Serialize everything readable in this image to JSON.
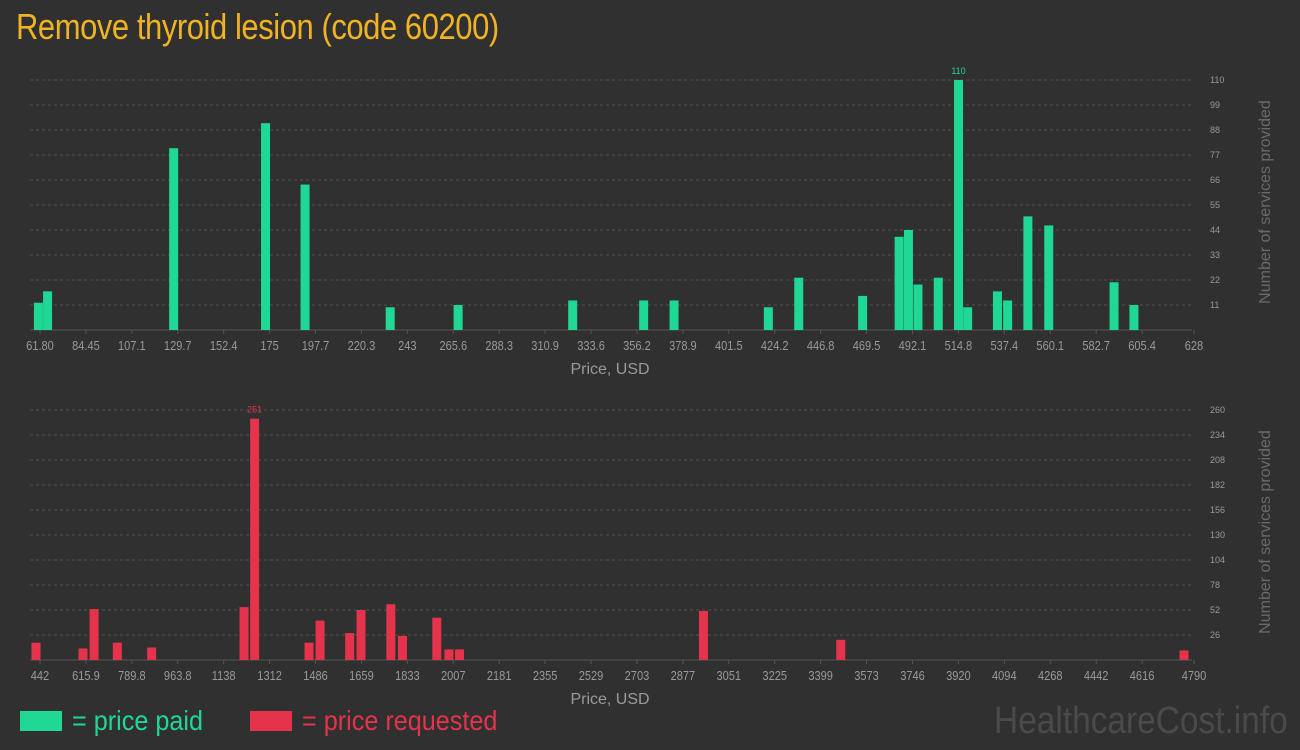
{
  "title": "Remove thyroid lesion (code 60200)",
  "legend": {
    "paid_label": "= price paid",
    "requested_label": "= price requested"
  },
  "watermark": "HealthcareCost.info",
  "colors": {
    "background": "#303030",
    "title": "#f0b323",
    "paid": "#1fd895",
    "requested": "#e4334a",
    "axis_text": "#9a9a9a",
    "grid": "#505050",
    "watermark": "#4a4a4a"
  },
  "chart_data": [
    {
      "type": "bar",
      "title": "",
      "xlabel": "Price, USD",
      "ylabel": "Number of services provided",
      "ylim": [
        0,
        110
      ],
      "yticks": [
        11,
        22,
        33,
        44,
        55,
        66,
        77,
        88,
        99,
        110
      ],
      "x_tick_labels": [
        "61.80",
        "84.45",
        "107.1",
        "129.7",
        "152.4",
        "175",
        "197.7",
        "220.3",
        "243",
        "265.6",
        "288.3",
        "310.9",
        "333.6",
        "356.2",
        "378.9",
        "401.5",
        "424.2",
        "446.8",
        "469.5",
        "492.1",
        "514.8",
        "537.4",
        "560.1",
        "582.7",
        "605.4",
        "628"
      ],
      "x_range": [
        61.8,
        628
      ],
      "grid": true,
      "color": "#1fd895",
      "max_label": "110",
      "bars": [
        {
          "x": 63.0,
          "y": 12
        },
        {
          "x": 67.5,
          "y": 17
        },
        {
          "x": 129.7,
          "y": 80
        },
        {
          "x": 175.0,
          "y": 91
        },
        {
          "x": 194.5,
          "y": 64
        },
        {
          "x": 236.5,
          "y": 10
        },
        {
          "x": 270.0,
          "y": 11
        },
        {
          "x": 326.5,
          "y": 13
        },
        {
          "x": 361.5,
          "y": 13
        },
        {
          "x": 376.5,
          "y": 13
        },
        {
          "x": 423.0,
          "y": 10
        },
        {
          "x": 438.0,
          "y": 23
        },
        {
          "x": 469.5,
          "y": 15
        },
        {
          "x": 487.5,
          "y": 41
        },
        {
          "x": 492.1,
          "y": 44
        },
        {
          "x": 496.8,
          "y": 20
        },
        {
          "x": 506.8,
          "y": 23
        },
        {
          "x": 516.8,
          "y": 110
        },
        {
          "x": 521.3,
          "y": 10
        },
        {
          "x": 536.0,
          "y": 17
        },
        {
          "x": 541.0,
          "y": 13
        },
        {
          "x": 551.0,
          "y": 50
        },
        {
          "x": 561.3,
          "y": 46
        },
        {
          "x": 593.5,
          "y": 21
        },
        {
          "x": 603.3,
          "y": 11
        }
      ]
    },
    {
      "type": "bar",
      "title": "",
      "xlabel": "Price, USD",
      "ylabel": "Number of services provided",
      "ylim": [
        0,
        260
      ],
      "yticks": [
        26,
        52,
        78,
        104,
        130,
        156,
        182,
        208,
        234,
        260
      ],
      "x_tick_labels": [
        "442",
        "615.9",
        "789.8",
        "963.8",
        "1138",
        "1312",
        "1486",
        "1659",
        "1833",
        "2007",
        "2181",
        "2355",
        "2529",
        "2703",
        "2877",
        "3051",
        "3225",
        "3399",
        "3573",
        "3746",
        "3920",
        "4094",
        "4268",
        "4442",
        "4616",
        "4790"
      ],
      "x_range": [
        442,
        4790
      ],
      "grid": true,
      "color": "#e4334a",
      "max_label": "251",
      "bars": [
        {
          "x": 442,
          "y": 18
        },
        {
          "x": 620,
          "y": 12
        },
        {
          "x": 662,
          "y": 53
        },
        {
          "x": 750,
          "y": 18
        },
        {
          "x": 880,
          "y": 13
        },
        {
          "x": 1230,
          "y": 55
        },
        {
          "x": 1270,
          "y": 251
        },
        {
          "x": 1476,
          "y": 18
        },
        {
          "x": 1518,
          "y": 41
        },
        {
          "x": 1630,
          "y": 28
        },
        {
          "x": 1673,
          "y": 52
        },
        {
          "x": 1786,
          "y": 58
        },
        {
          "x": 1830,
          "y": 25
        },
        {
          "x": 1960,
          "y": 44
        },
        {
          "x": 2006,
          "y": 11
        },
        {
          "x": 2046,
          "y": 11
        },
        {
          "x": 2970,
          "y": 51
        },
        {
          "x": 3490,
          "y": 21
        },
        {
          "x": 4790,
          "y": 10
        }
      ]
    }
  ]
}
